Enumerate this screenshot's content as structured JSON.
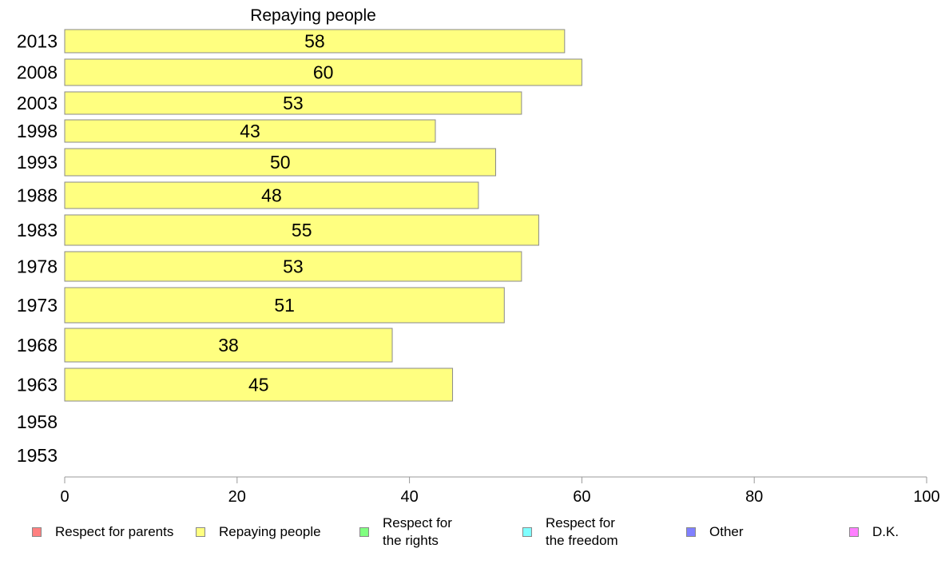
{
  "chart_data": {
    "type": "bar",
    "orientation": "horizontal",
    "title": "Repaying people",
    "categories": [
      "2013",
      "2008",
      "2003",
      "1998",
      "1993",
      "1988",
      "1983",
      "1978",
      "1973",
      "1968",
      "1963",
      "1958",
      "1953"
    ],
    "series": [
      {
        "name": "Repaying people",
        "color": "#ffff80",
        "values": [
          58,
          60,
          53,
          43,
          50,
          48,
          55,
          53,
          51,
          38,
          45,
          null,
          null
        ]
      }
    ],
    "xlim": [
      0,
      100
    ],
    "x_ticks": [
      0,
      20,
      40,
      60,
      80,
      100
    ],
    "grid": false,
    "legend_position": "bottom",
    "legend": [
      {
        "label": "Respect for parents",
        "color": "#ff8080"
      },
      {
        "label": "Repaying people",
        "color": "#ffff80"
      },
      {
        "label": "Respect for\nthe rights",
        "color": "#80ff80"
      },
      {
        "label": "Respect for\nthe freedom",
        "color": "#80ffff"
      },
      {
        "label": "Other",
        "color": "#8080ff"
      },
      {
        "label": "D.K.",
        "color": "#ff80ff"
      }
    ]
  }
}
